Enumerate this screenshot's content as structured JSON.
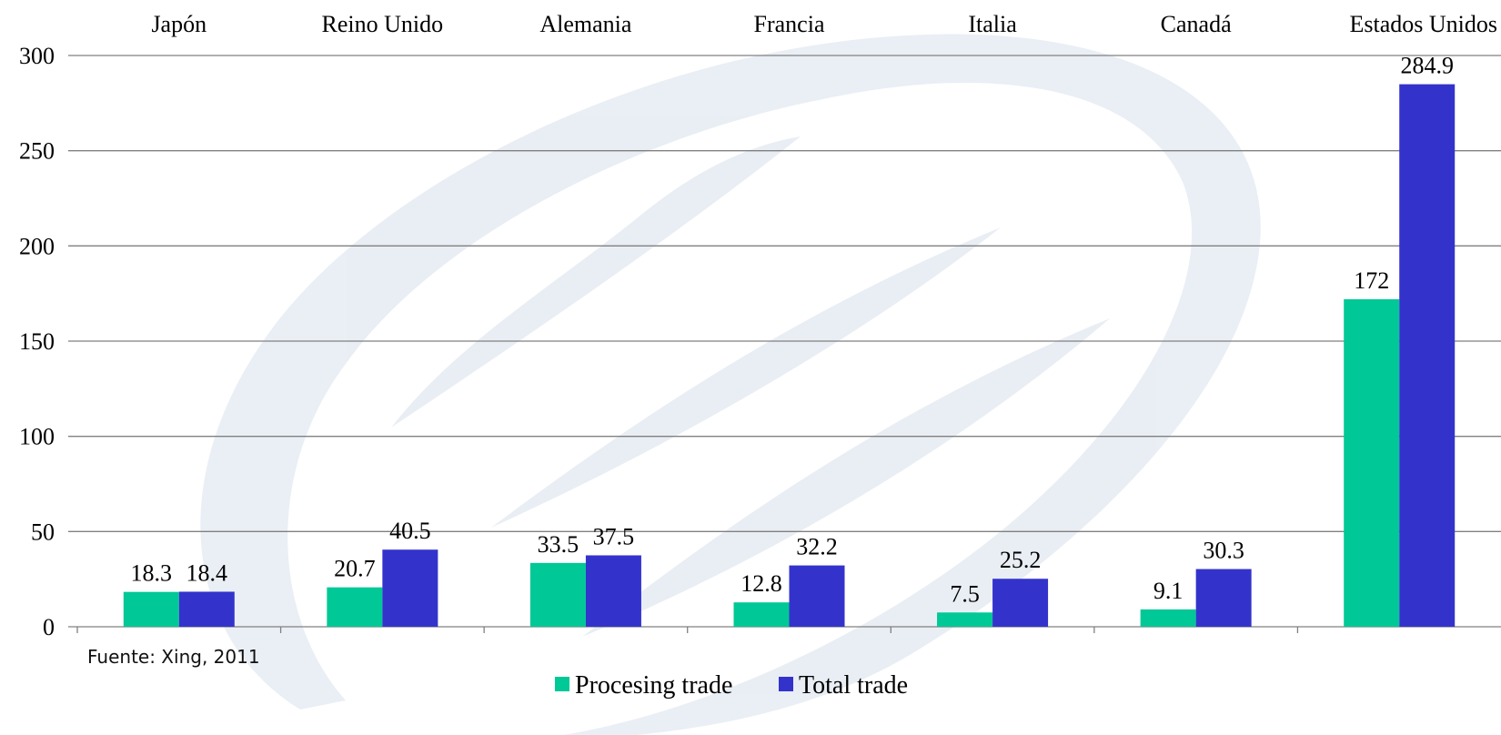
{
  "source_note": "Fuente: Xing, 2011",
  "colors": {
    "procesing": "#00c896",
    "total": "#3333cc",
    "grid": "#808080",
    "watermark": "#e6ecf3"
  },
  "chart_data": {
    "type": "bar",
    "categories": [
      "Japón",
      "Reino Unido",
      "Alemania",
      "Francia",
      "Italia",
      "Canadá",
      "Estados Unidos"
    ],
    "series": [
      {
        "name": "Procesing trade",
        "values": [
          18.3,
          20.7,
          33.5,
          12.8,
          7.5,
          9.1,
          172
        ],
        "labels": [
          "18.3",
          "20.7",
          "33.5",
          "12.8",
          "7.5",
          "9.1",
          "172"
        ]
      },
      {
        "name": "Total trade",
        "values": [
          18.4,
          40.5,
          37.5,
          32.2,
          25.2,
          30.3,
          284.9
        ],
        "labels": [
          "18.4",
          "40.5",
          "37.5",
          "32.2",
          "25.2",
          "30.3",
          "284.9"
        ]
      }
    ],
    "ylim": [
      0,
      300
    ],
    "yticks": [
      "0",
      "50",
      "100",
      "150",
      "200",
      "250",
      "300"
    ],
    "category_axis_position": "top",
    "legend_position": "bottom",
    "grid": true
  }
}
